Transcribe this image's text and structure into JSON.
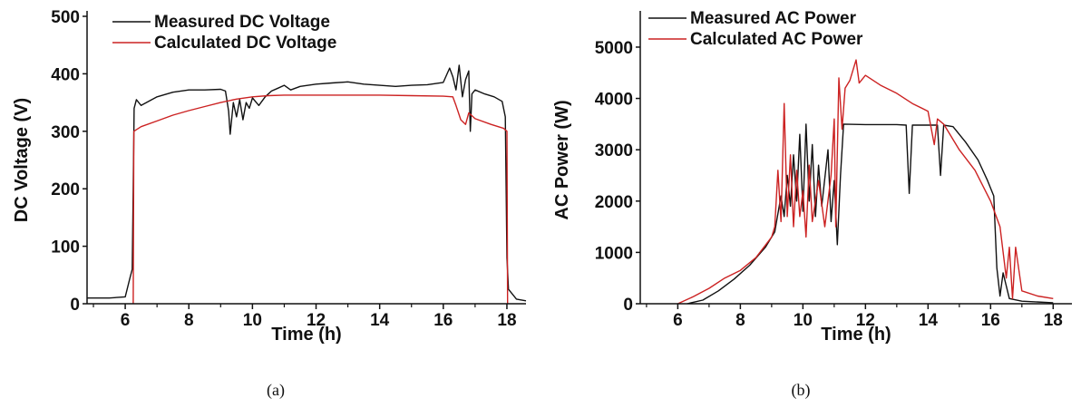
{
  "captions": [
    "(a)",
    "(b)"
  ],
  "chart_data": [
    {
      "type": "line",
      "xlabel": "Time (h)",
      "ylabel": "DC Voltage (V)",
      "xlim": [
        4.8,
        18.6
      ],
      "ylim": [
        0,
        500
      ],
      "xticks": [
        6,
        8,
        10,
        12,
        14,
        16,
        18
      ],
      "yticks": [
        0,
        100,
        200,
        300,
        400,
        500
      ],
      "legend_position": "top-left",
      "series": [
        {
          "name": "Measured DC Voltage",
          "color": "#111111",
          "points": [
            [
              4.8,
              10
            ],
            [
              5.5,
              10
            ],
            [
              6.0,
              12
            ],
            [
              6.15,
              45
            ],
            [
              6.22,
              60
            ],
            [
              6.25,
              200
            ],
            [
              6.28,
              340
            ],
            [
              6.35,
              355
            ],
            [
              6.5,
              345
            ],
            [
              7.0,
              360
            ],
            [
              7.5,
              368
            ],
            [
              8.0,
              372
            ],
            [
              8.5,
              372
            ],
            [
              9.0,
              373
            ],
            [
              9.15,
              370
            ],
            [
              9.25,
              335
            ],
            [
              9.3,
              295
            ],
            [
              9.4,
              350
            ],
            [
              9.5,
              325
            ],
            [
              9.6,
              355
            ],
            [
              9.7,
              320
            ],
            [
              9.8,
              350
            ],
            [
              9.9,
              340
            ],
            [
              10.0,
              358
            ],
            [
              10.2,
              345
            ],
            [
              10.4,
              360
            ],
            [
              10.6,
              370
            ],
            [
              10.8,
              375
            ],
            [
              11.0,
              380
            ],
            [
              11.2,
              372
            ],
            [
              11.5,
              378
            ],
            [
              12.0,
              382
            ],
            [
              12.5,
              384
            ],
            [
              13.0,
              386
            ],
            [
              13.5,
              382
            ],
            [
              14.0,
              380
            ],
            [
              14.5,
              378
            ],
            [
              15.0,
              380
            ],
            [
              15.5,
              381
            ],
            [
              16.0,
              385
            ],
            [
              16.2,
              410
            ],
            [
              16.3,
              395
            ],
            [
              16.4,
              372
            ],
            [
              16.5,
              415
            ],
            [
              16.6,
              360
            ],
            [
              16.7,
              390
            ],
            [
              16.8,
              405
            ],
            [
              16.85,
              300
            ],
            [
              16.9,
              365
            ],
            [
              17.0,
              372
            ],
            [
              17.3,
              365
            ],
            [
              17.6,
              360
            ],
            [
              17.85,
              352
            ],
            [
              17.95,
              325
            ],
            [
              18.0,
              80
            ],
            [
              18.05,
              25
            ],
            [
              18.3,
              8
            ],
            [
              18.6,
              5
            ]
          ]
        },
        {
          "name": "Calculated DC Voltage",
          "color": "#cc2222",
          "points": [
            [
              6.25,
              0
            ],
            [
              6.27,
              300
            ],
            [
              6.5,
              308
            ],
            [
              7.0,
              318
            ],
            [
              7.5,
              328
            ],
            [
              8.0,
              336
            ],
            [
              8.5,
              343
            ],
            [
              9.0,
              350
            ],
            [
              9.5,
              356
            ],
            [
              10.0,
              360
            ],
            [
              10.5,
              362
            ],
            [
              11.0,
              363
            ],
            [
              12.0,
              363
            ],
            [
              13.0,
              363
            ],
            [
              14.0,
              363
            ],
            [
              15.0,
              362
            ],
            [
              16.0,
              361
            ],
            [
              16.3,
              360
            ],
            [
              16.4,
              345
            ],
            [
              16.55,
              320
            ],
            [
              16.7,
              312
            ],
            [
              16.8,
              332
            ],
            [
              17.0,
              322
            ],
            [
              17.5,
              312
            ],
            [
              17.9,
              305
            ],
            [
              18.0,
              300
            ],
            [
              18.02,
              0
            ]
          ]
        }
      ]
    },
    {
      "type": "line",
      "xlabel": "Time (h)",
      "ylabel": "AC Power (W)",
      "xlim": [
        4.8,
        18.6
      ],
      "ylim": [
        0,
        5600
      ],
      "xticks": [
        6,
        8,
        10,
        12,
        14,
        16,
        18
      ],
      "yticks": [
        0,
        1000,
        2000,
        3000,
        4000,
        5000
      ],
      "legend_position": "top-left",
      "series": [
        {
          "name": "Measured AC Power",
          "color": "#111111",
          "points": [
            [
              6.3,
              0
            ],
            [
              6.8,
              70
            ],
            [
              7.3,
              250
            ],
            [
              7.8,
              480
            ],
            [
              8.3,
              750
            ],
            [
              8.8,
              1100
            ],
            [
              9.1,
              1400
            ],
            [
              9.3,
              2100
            ],
            [
              9.4,
              1700
            ],
            [
              9.5,
              2500
            ],
            [
              9.6,
              1900
            ],
            [
              9.7,
              2900
            ],
            [
              9.8,
              2000
            ],
            [
              9.9,
              3300
            ],
            [
              10.0,
              1800
            ],
            [
              10.1,
              3500
            ],
            [
              10.2,
              2000
            ],
            [
              10.3,
              3100
            ],
            [
              10.4,
              1700
            ],
            [
              10.5,
              2700
            ],
            [
              10.6,
              1900
            ],
            [
              10.8,
              3000
            ],
            [
              10.9,
              1600
            ],
            [
              11.0,
              2400
            ],
            [
              11.1,
              1150
            ],
            [
              11.2,
              2500
            ],
            [
              11.3,
              3500
            ],
            [
              12.0,
              3490
            ],
            [
              12.5,
              3490
            ],
            [
              13.0,
              3490
            ],
            [
              13.3,
              3480
            ],
            [
              13.4,
              2150
            ],
            [
              13.5,
              3480
            ],
            [
              14.0,
              3480
            ],
            [
              14.3,
              3480
            ],
            [
              14.4,
              2500
            ],
            [
              14.5,
              3480
            ],
            [
              14.8,
              3450
            ],
            [
              15.2,
              3150
            ],
            [
              15.6,
              2800
            ],
            [
              15.9,
              2400
            ],
            [
              16.1,
              2100
            ],
            [
              16.2,
              700
            ],
            [
              16.3,
              150
            ],
            [
              16.4,
              600
            ],
            [
              16.6,
              100
            ],
            [
              17.0,
              50
            ],
            [
              18.0,
              20
            ]
          ]
        },
        {
          "name": "Calculated AC Power",
          "color": "#cc2222",
          "points": [
            [
              6.0,
              0
            ],
            [
              6.5,
              140
            ],
            [
              7.0,
              300
            ],
            [
              7.5,
              500
            ],
            [
              8.0,
              650
            ],
            [
              8.5,
              900
            ],
            [
              9.0,
              1300
            ],
            [
              9.1,
              1500
            ],
            [
              9.2,
              2600
            ],
            [
              9.3,
              1600
            ],
            [
              9.4,
              3900
            ],
            [
              9.5,
              1700
            ],
            [
              9.6,
              2900
            ],
            [
              9.7,
              1500
            ],
            [
              9.8,
              2600
            ],
            [
              9.9,
              1700
            ],
            [
              10.0,
              2200
            ],
            [
              10.1,
              1300
            ],
            [
              10.2,
              2700
            ],
            [
              10.3,
              1600
            ],
            [
              10.5,
              2400
            ],
            [
              10.7,
              1500
            ],
            [
              10.9,
              2500
            ],
            [
              11.0,
              3600
            ],
            [
              11.05,
              1500
            ],
            [
              11.15,
              4400
            ],
            [
              11.25,
              3400
            ],
            [
              11.35,
              4200
            ],
            [
              11.5,
              4350
            ],
            [
              11.7,
              4750
            ],
            [
              11.8,
              4300
            ],
            [
              12.0,
              4450
            ],
            [
              12.5,
              4250
            ],
            [
              13.0,
              4100
            ],
            [
              13.5,
              3900
            ],
            [
              14.0,
              3750
            ],
            [
              14.2,
              3100
            ],
            [
              14.3,
              3600
            ],
            [
              14.5,
              3500
            ],
            [
              15.0,
              3000
            ],
            [
              15.5,
              2600
            ],
            [
              16.0,
              2000
            ],
            [
              16.3,
              1500
            ],
            [
              16.5,
              500
            ],
            [
              16.6,
              1100
            ],
            [
              16.7,
              100
            ],
            [
              16.8,
              1100
            ],
            [
              17.0,
              250
            ],
            [
              17.5,
              150
            ],
            [
              18.0,
              100
            ]
          ]
        }
      ]
    }
  ]
}
